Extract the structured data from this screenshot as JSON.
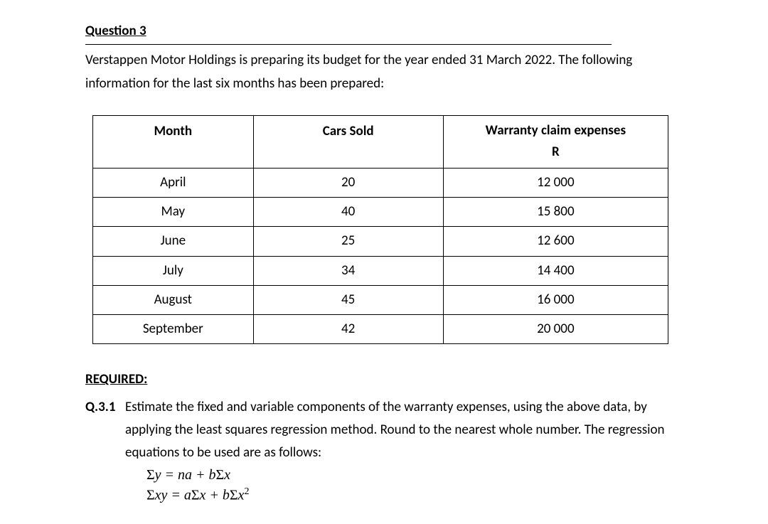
{
  "heading": "Question 3",
  "intro": "Verstappen Motor Holdings is preparing its budget for the year ended 31 March 2022. The following information for the last six months has been prepared:",
  "table": {
    "columns": {
      "month": "Month",
      "cars": "Cars Sold",
      "warranty_line1": "Warranty claim expenses",
      "warranty_line2": "R"
    },
    "rows": [
      {
        "month": "April",
        "cars": "20",
        "warranty": "12 000"
      },
      {
        "month": "May",
        "cars": "40",
        "warranty": "15 800"
      },
      {
        "month": "June",
        "cars": "25",
        "warranty": "12 600"
      },
      {
        "month": "July",
        "cars": "34",
        "warranty": "14 400"
      },
      {
        "month": "August",
        "cars": "45",
        "warranty": "16 000"
      },
      {
        "month": "September",
        "cars": "42",
        "warranty": "20 000"
      }
    ]
  },
  "required_label": "REQUIRED:",
  "q31": {
    "label": "Q.3.1",
    "text": "Estimate the fixed and variable components of the warranty expenses, using the above data, by applying the least squares regression method. Round to the nearest whole number. The regression equations to be used are as follows:"
  },
  "eq1_html": "<span class='sigma'>Σ</span>y = na + b<span class='sigma'>Σ</span>x",
  "eq2_html": "<span class='sigma'>Σ</span>xy = a<span class='sigma'>Σ</span>x + b<span class='sigma'>Σ</span>x<span class='sup'>2</span>"
}
